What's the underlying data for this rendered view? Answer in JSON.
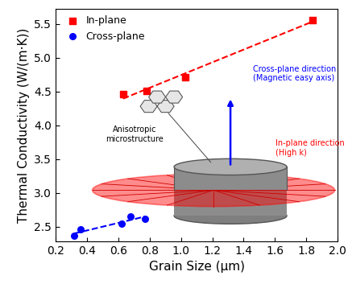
{
  "chart_data": {
    "type": "scatter",
    "x_label": "Grain Size (μm)",
    "y_label": "Thermal Conductivity (W/(m·K))",
    "xlim": [
      0.2,
      2.0
    ],
    "xticks": [
      {
        "value": 0.2,
        "label": "0.2"
      },
      {
        "value": 0.4,
        "label": "0.4"
      },
      {
        "value": 0.6,
        "label": "0.6"
      },
      {
        "value": 0.8,
        "label": "0.8"
      },
      {
        "value": 1.0,
        "label": "1.0"
      },
      {
        "value": 1.2,
        "label": "1.2"
      },
      {
        "value": 1.4,
        "label": "1.4"
      },
      {
        "value": 1.6,
        "label": "1.6"
      },
      {
        "value": 1.8,
        "label": "1.8"
      },
      {
        "value": 2.0,
        "label": "2.0"
      }
    ],
    "ylim": [
      2.28,
      5.73
    ],
    "yticks": [
      {
        "value": 2.5,
        "label": "2.5"
      },
      {
        "value": 3,
        "label": "3.0"
      },
      {
        "value": 3.5,
        "label": "3.5"
      },
      {
        "value": 4,
        "label": "4.0"
      },
      {
        "value": 4.5,
        "label": "4.5"
      },
      {
        "value": 5,
        "label": "5.0"
      },
      {
        "value": 5.5,
        "label": "5.5"
      }
    ],
    "legend": "upper left",
    "grid": false,
    "series": [
      {
        "name": "In-plane",
        "color": "#ff0000",
        "marker": "square",
        "line_style": "dashed",
        "x": [
          0.63,
          0.78,
          1.03,
          1.84
        ],
        "values": [
          4.46,
          4.51,
          4.71,
          5.56
        ]
      },
      {
        "name": "Cross-plane",
        "color": "#0000ff",
        "marker": "circle",
        "line_style": "dashed",
        "x": [
          0.32,
          0.36,
          0.62,
          0.68,
          0.77
        ],
        "values": [
          2.36,
          2.46,
          2.54,
          2.65,
          2.62
        ]
      }
    ],
    "annotations": [
      "Cross-plane direction\n(Magnetic easy axis)",
      "In-plane direction\n(High k)",
      "Anisotropic\nmicrostructure"
    ]
  }
}
